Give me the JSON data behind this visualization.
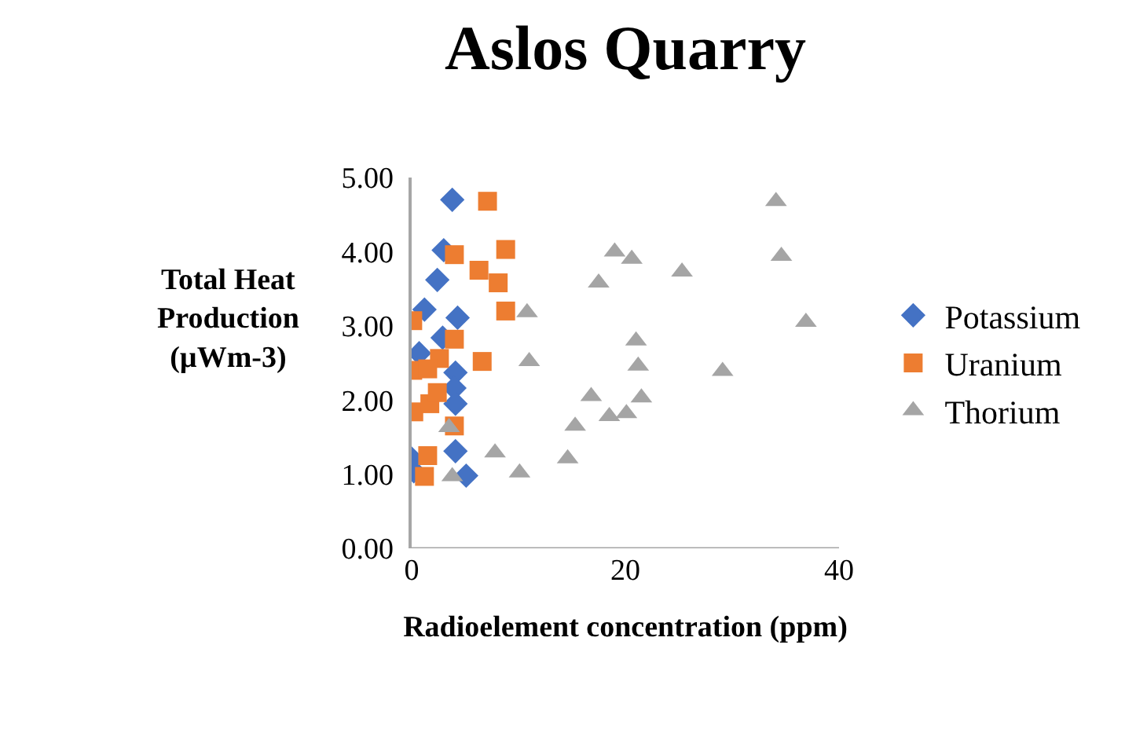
{
  "chart_data": {
    "type": "scatter",
    "title": "Aslos Quarry",
    "xlabel": "Radioelement concentration (ppm)",
    "ylabel": "Total Heat Production (µWm-3)",
    "xlim": [
      0,
      40
    ],
    "xticks": [
      0,
      20,
      40
    ],
    "ylim": [
      0,
      5
    ],
    "yticks": [
      {
        "value": 0,
        "label": "0.00"
      },
      {
        "value": 1,
        "label": "1.00"
      },
      {
        "value": 2,
        "label": "2.00"
      },
      {
        "value": 3,
        "label": "3.00"
      },
      {
        "value": 4,
        "label": "4.00"
      },
      {
        "value": 5,
        "label": "5.00"
      }
    ],
    "grid": false,
    "legend": "right",
    "series": [
      {
        "name": "Potassium",
        "color": "#4472c4",
        "marker": "diamond",
        "x": [
          3.8,
          3.0,
          2.4,
          1.2,
          4.3,
          2.9,
          0.7,
          4.1,
          4.0,
          4.1,
          4.1,
          0.0,
          0.2,
          5.1
        ],
        "values": [
          4.7,
          4.02,
          3.62,
          3.22,
          3.11,
          2.84,
          2.63,
          2.37,
          2.16,
          1.95,
          1.31,
          1.21,
          1.04,
          0.98
        ]
      },
      {
        "name": "Uranium",
        "color": "#ed7d31",
        "marker": "square",
        "x": [
          7.1,
          4.0,
          8.8,
          6.3,
          8.1,
          8.8,
          0.1,
          4.0,
          6.6,
          2.6,
          0.1,
          1.5,
          4.0,
          0.2,
          1.7,
          1.5,
          1.2,
          2.4
        ],
        "values": [
          4.68,
          3.96,
          4.03,
          3.75,
          3.58,
          3.2,
          3.07,
          2.82,
          2.52,
          2.56,
          2.4,
          2.42,
          1.65,
          1.84,
          1.95,
          1.25,
          0.97,
          2.1
        ]
      },
      {
        "name": "Thorium",
        "color": "#a5a5a5",
        "marker": "triangle",
        "x": [
          34.1,
          34.6,
          36.9,
          19.0,
          20.6,
          17.5,
          25.3,
          10.8,
          21.0,
          21.2,
          29.1,
          11.0,
          16.8,
          21.5,
          18.5,
          20.1,
          15.3,
          7.8,
          14.6,
          10.1,
          3.5,
          3.8
        ],
        "values": [
          4.68,
          3.94,
          3.05,
          4.0,
          3.9,
          3.58,
          3.73,
          3.18,
          2.8,
          2.46,
          2.39,
          2.52,
          2.05,
          2.03,
          1.78,
          1.82,
          1.65,
          1.29,
          1.21,
          1.02,
          1.63,
          0.97
        ]
      }
    ]
  }
}
